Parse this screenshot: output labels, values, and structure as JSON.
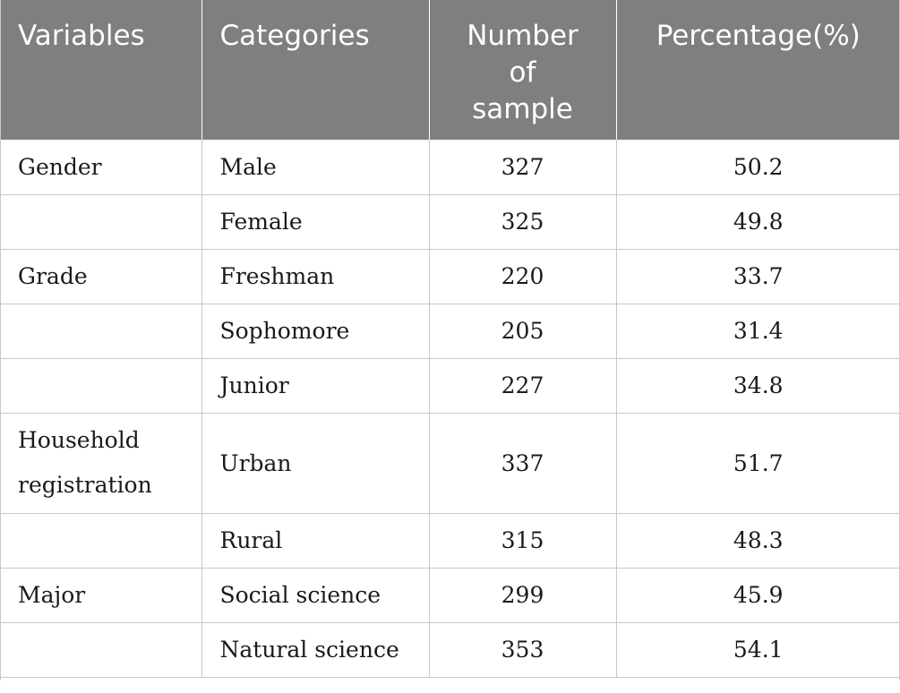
{
  "headers": {
    "variables": "Variables",
    "categories": "Categories",
    "number_line1": "Number",
    "number_line2": "of",
    "number_line3": "sample",
    "percentage": "Percentage(%)"
  },
  "rows": [
    {
      "variable": "Gender",
      "category": "Male",
      "number": "327",
      "percentage": "50.2"
    },
    {
      "variable": "",
      "category": "Female",
      "number": "325",
      "percentage": "49.8"
    },
    {
      "variable": "Grade",
      "category": "Freshman",
      "number": "220",
      "percentage": "33.7"
    },
    {
      "variable": "",
      "category": "Sophomore",
      "number": "205",
      "percentage": "31.4"
    },
    {
      "variable": "",
      "category": "Junior",
      "number": "227",
      "percentage": "34.8"
    },
    {
      "variable_line1": "Household",
      "variable_line2": "registration",
      "category": "Urban",
      "number": "337",
      "percentage": "51.7"
    },
    {
      "variable": "",
      "category": "Rural",
      "number": "315",
      "percentage": "48.3"
    },
    {
      "variable": "Major",
      "category": "Social science",
      "number": "299",
      "percentage": "45.9"
    },
    {
      "variable": "",
      "category": "Natural science",
      "number": "353",
      "percentage": "54.1"
    }
  ],
  "colors": {
    "header_bg": "#7e7f7e",
    "header_text": "#ffffff",
    "grid_line": "#c8c8c8",
    "body_text": "#1a1a1a"
  }
}
